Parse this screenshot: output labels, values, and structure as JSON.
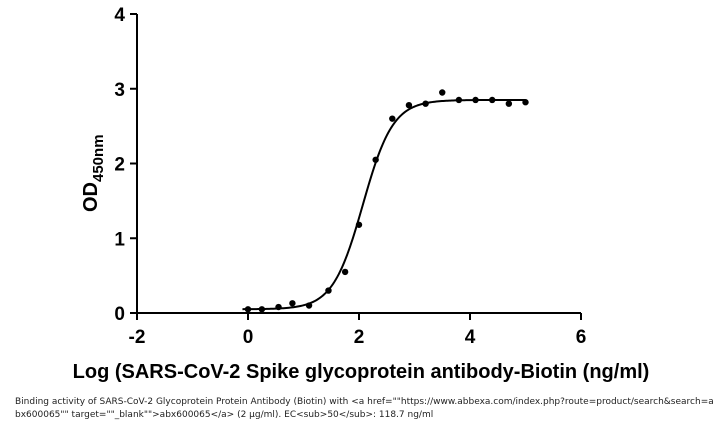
{
  "chart_data": {
    "type": "scatter",
    "xlabel": "Log (SARS-CoV-2 Spike glycoprotein antibody-Biotin (ng/ml)",
    "ylabel": "OD",
    "ylabel_subscript": "450nm",
    "xlim": [
      -2,
      6
    ],
    "ylim": [
      0,
      4
    ],
    "xticks": [
      "-2",
      "0",
      "2",
      "4",
      "6"
    ],
    "yticks": [
      "0",
      "1",
      "2",
      "3",
      "4"
    ],
    "grid": false,
    "legend": "none",
    "series": [
      {
        "points": [
          {
            "x": 0.0,
            "y": 0.05
          },
          {
            "x": 0.25,
            "y": 0.05
          },
          {
            "x": 0.55,
            "y": 0.08
          },
          {
            "x": 0.8,
            "y": 0.13
          },
          {
            "x": 1.1,
            "y": 0.1
          },
          {
            "x": 1.45,
            "y": 0.3
          },
          {
            "x": 1.75,
            "y": 0.55
          },
          {
            "x": 2.0,
            "y": 1.18
          },
          {
            "x": 2.3,
            "y": 2.05
          },
          {
            "x": 2.6,
            "y": 2.6
          },
          {
            "x": 2.9,
            "y": 2.78
          },
          {
            "x": 3.2,
            "y": 2.8
          },
          {
            "x": 3.5,
            "y": 2.95
          },
          {
            "x": 3.8,
            "y": 2.85
          },
          {
            "x": 4.1,
            "y": 2.85
          },
          {
            "x": 4.4,
            "y": 2.85
          },
          {
            "x": 4.7,
            "y": 2.8
          },
          {
            "x": 5.0,
            "y": 2.82
          }
        ],
        "fit_curve": {
          "model": "four-parameter logistic",
          "bottom": 0.05,
          "top": 2.85,
          "log_ec50": 2.07,
          "hill_slope": 1.6,
          "x_range": [
            -0.1,
            5.0
          ]
        }
      }
    ]
  },
  "caption": {
    "text": "Binding activity of SARS-CoV-2 Glycoprotein Protein Antibody (Biotin) with <a href=\"\"https://www.abbexa.com/index.php?route=product/search&search=abx600065\"\" target=\"\"_blank\"\">abx600065</a> (2 μg/ml). EC<sub>50</sub>: 118.7 ng/ml"
  },
  "colors": {
    "data": "#000000",
    "caption": "#222222"
  }
}
